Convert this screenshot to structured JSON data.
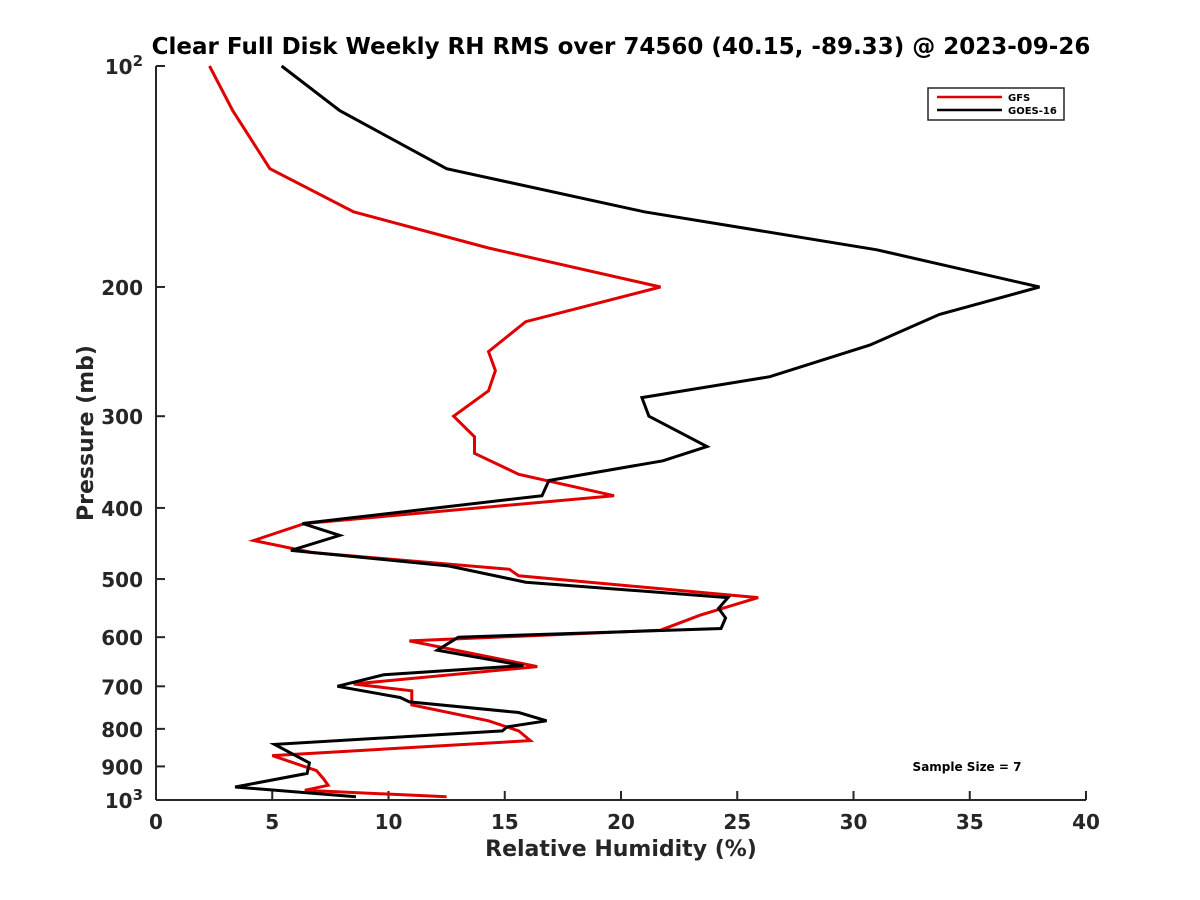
{
  "chart_data": {
    "type": "line",
    "title": "Clear Full Disk Weekly RH RMS over 74560 (40.15, -89.33) @ 2023-09-26",
    "xlabel": "Relative Humidity (%)",
    "ylabel": "Pressure (mb)",
    "xlim": [
      0,
      40
    ],
    "ylim": [
      100,
      1000
    ],
    "y_scale": "log",
    "y_reversed": true,
    "grid": false,
    "legend_position": "top-right",
    "x_ticks": [
      0,
      5,
      10,
      15,
      20,
      25,
      30,
      35,
      40
    ],
    "x_tick_labels": [
      "0",
      "5",
      "10",
      "15",
      "20",
      "25",
      "30",
      "35",
      "40"
    ],
    "y_ticks": [
      {
        "value": 100,
        "label": "10",
        "sup": "2"
      },
      {
        "value": 200,
        "label": "200",
        "sup": ""
      },
      {
        "value": 300,
        "label": "300",
        "sup": ""
      },
      {
        "value": 400,
        "label": "400",
        "sup": ""
      },
      {
        "value": 500,
        "label": "500",
        "sup": ""
      },
      {
        "value": 600,
        "label": "600",
        "sup": ""
      },
      {
        "value": 700,
        "label": "700",
        "sup": ""
      },
      {
        "value": 800,
        "label": "800",
        "sup": ""
      },
      {
        "value": 900,
        "label": "900",
        "sup": ""
      },
      {
        "value": 1000,
        "label": "10",
        "sup": "3"
      }
    ],
    "annotation": "Sample Size = 7",
    "series": [
      {
        "name": "GFS",
        "color": "#e00000",
        "x": [
          2.3,
          3.3,
          4.9,
          8.5,
          14.3,
          21.7,
          15.9,
          14.3,
          14.6,
          14.3,
          12.8,
          13.7,
          13.7,
          15.6,
          19.7,
          6.4,
          4.2,
          6.7,
          15.2,
          15.6,
          25.9,
          23.4,
          21.7,
          10.9,
          16.4,
          8.5,
          11.0,
          11.0,
          14.3,
          15.6,
          16.1,
          5.0,
          6.9,
          7.2,
          7.4,
          6.4,
          12.5
        ],
        "y": [
          100,
          115,
          138,
          158,
          177,
          200,
          223,
          245,
          260,
          277,
          300,
          320,
          337,
          360,
          385,
          420,
          443,
          460,
          485,
          495,
          530,
          560,
          587,
          607,
          658,
          695,
          710,
          742,
          780,
          805,
          830,
          870,
          912,
          935,
          955,
          970,
          990
        ]
      },
      {
        "name": "GOES-16",
        "color": "#000000",
        "x": [
          5.4,
          7.9,
          12.5,
          21.0,
          31.0,
          38.0,
          33.7,
          30.7,
          26.4,
          20.9,
          21.2,
          23.7,
          21.8,
          16.9,
          16.6,
          6.3,
          7.9,
          5.8,
          12.6,
          15.9,
          24.6,
          24.2,
          24.5,
          24.3,
          13.0,
          12.1,
          15.8,
          9.8,
          7.8,
          10.5,
          10.9,
          15.6,
          16.8,
          15.1,
          14.9,
          5.1,
          6.6,
          6.5,
          3.4,
          8.6
        ],
        "y": [
          100,
          115,
          138,
          158,
          178,
          200,
          218,
          240,
          265,
          283,
          300,
          330,
          345,
          367,
          385,
          420,
          436,
          457,
          480,
          505,
          530,
          548,
          565,
          584,
          600,
          625,
          656,
          675,
          700,
          725,
          735,
          760,
          780,
          795,
          805,
          840,
          890,
          920,
          960,
          990
        ]
      }
    ]
  }
}
